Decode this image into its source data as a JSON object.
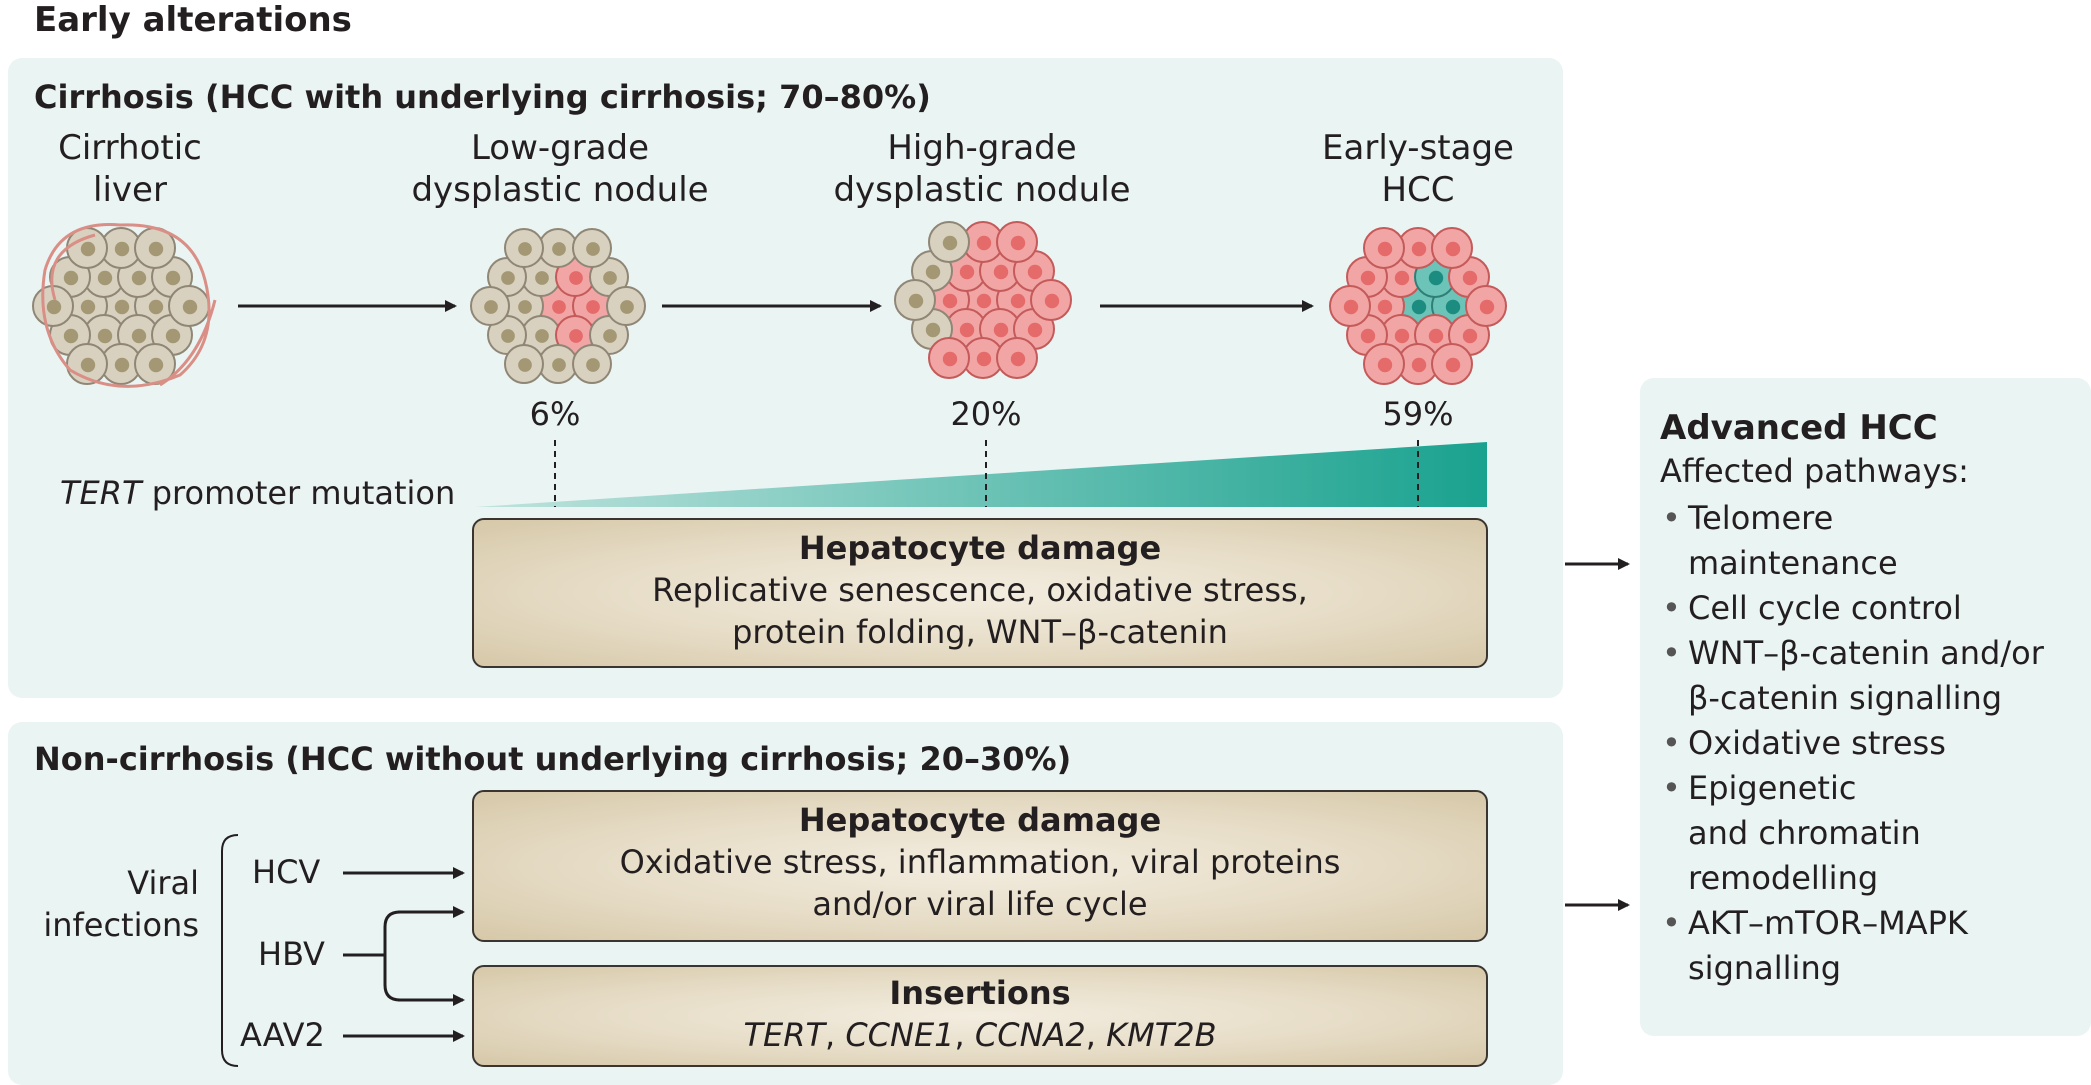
{
  "heading": "Early alterations",
  "cirrhosis": {
    "title": "Cirrhosis (HCC with underlying cirrhosis; 70–80%)",
    "stages": [
      {
        "line1": "Cirrhotic",
        "line2": "liver"
      },
      {
        "line1": "Low-grade",
        "line2": "dysplastic nodule"
      },
      {
        "line1": "High-grade",
        "line2": "dysplastic nodule"
      },
      {
        "line1": "Early-stage",
        "line2": "HCC"
      }
    ],
    "percentages": [
      "6%",
      "20%",
      "59%"
    ],
    "tert_gene": "TERT",
    "tert_rest": " promoter mutation",
    "damage_box": {
      "title": "Hepatocyte damage",
      "line1": "Replicative senescence, oxidative stress,",
      "line2": "protein folding, WNT–β-catenin"
    }
  },
  "non_cirrhosis": {
    "title": "Non-cirrhosis (HCC without underlying cirrhosis; 20–30%)",
    "viral_label_1": "Viral",
    "viral_label_2": "infections",
    "viruses": [
      "HCV",
      "HBV",
      "AAV2"
    ],
    "damage_box": {
      "title": "Hepatocyte damage",
      "line1": "Oxidative stress, inflammation, viral proteins",
      "line2": "and/or viral life cycle"
    },
    "insertions_box": {
      "title": "Insertions",
      "g1": "TERT",
      "sep1": ", ",
      "g2": "CCNE1",
      "sep2": ", ",
      "g3": "CCNA2",
      "sep3": ", ",
      "g4": "KMT2B"
    }
  },
  "advanced": {
    "title": "Advanced HCC",
    "subtitle": "Affected pathways:",
    "pathways": [
      {
        "l1": "Telomere",
        "l2": "maintenance",
        "l3": ""
      },
      {
        "l1": "Cell cycle control",
        "l2": "",
        "l3": ""
      },
      {
        "l1": "WNT–β-catenin and/or",
        "l2": "β-catenin signalling",
        "l3": ""
      },
      {
        "l1": "Oxidative stress",
        "l2": "",
        "l3": ""
      },
      {
        "l1": "Epigenetic",
        "l2": "and chromatin",
        "l3": "remodelling"
      },
      {
        "l1": "AKT–mTOR–MAPK",
        "l2": "signalling",
        "l3": ""
      }
    ]
  },
  "colors": {
    "panel": "#eaf4f3",
    "normal_cell": "#d9d1bf",
    "dysplastic_cell": "#f2a5a5",
    "tumour_cell": "#6cc3b8",
    "wedge": "#1aa28f",
    "box_fill": "#e6dcc6"
  }
}
